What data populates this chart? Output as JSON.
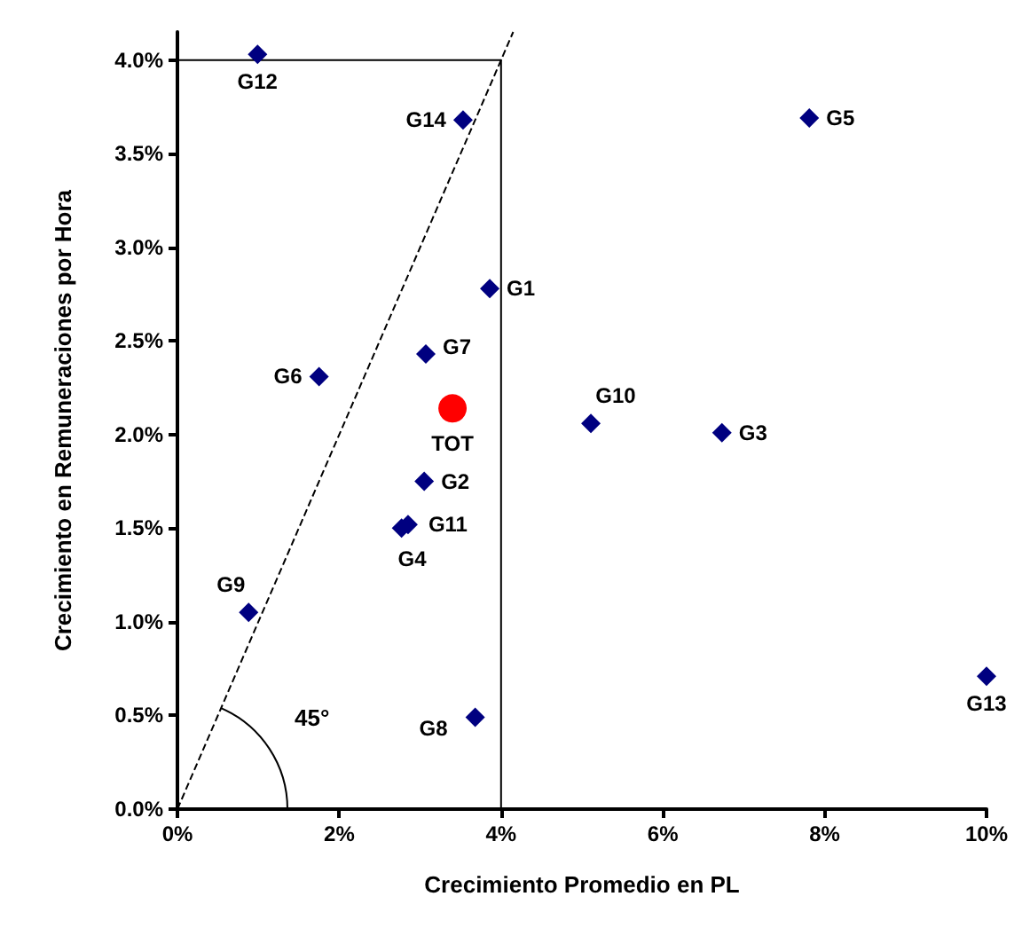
{
  "chart_data": {
    "type": "scatter",
    "xlabel": "Crecimiento Promedio en PL",
    "ylabel": "Crecimiento en Remuneraciones por Hora",
    "xlim": [
      0,
      10
    ],
    "xticks": [
      {
        "value": 0,
        "label": "0%"
      },
      {
        "value": 2,
        "label": "2%"
      },
      {
        "value": 4,
        "label": "4%"
      },
      {
        "value": 6,
        "label": "6%"
      },
      {
        "value": 8,
        "label": "8%"
      },
      {
        "value": 10,
        "label": "10%"
      }
    ],
    "ylim": [
      0,
      4.15
    ],
    "yticks": [
      {
        "value": 0,
        "label": "0.0%"
      },
      {
        "value": 0.5,
        "label": "0.5%"
      },
      {
        "value": 1,
        "label": "1.0%"
      },
      {
        "value": 1.5,
        "label": "1.5%"
      },
      {
        "value": 2,
        "label": "2.0%"
      },
      {
        "value": 2.5,
        "label": "2.5%"
      },
      {
        "value": 3,
        "label": "3.0%"
      },
      {
        "value": 3.5,
        "label": "3.5%"
      },
      {
        "value": 4,
        "label": "4.0%"
      }
    ],
    "grid": false,
    "legend": false,
    "marker": "diamond",
    "series": [
      {
        "name": "G12",
        "color": "#000080",
        "x": [
          0.99
        ],
        "values": [
          4.03
        ]
      },
      {
        "name": "G14",
        "color": "#000080",
        "x": [
          3.53
        ],
        "values": [
          3.68
        ]
      },
      {
        "name": "G5",
        "color": "#000080",
        "x": [
          7.81
        ],
        "values": [
          3.69
        ]
      },
      {
        "name": "G1",
        "color": "#000080",
        "x": [
          3.86
        ],
        "values": [
          2.78
        ]
      },
      {
        "name": "G7",
        "color": "#000080",
        "x": [
          3.07
        ],
        "values": [
          2.43
        ]
      },
      {
        "name": "G6",
        "color": "#000080",
        "x": [
          1.75
        ],
        "values": [
          2.31
        ]
      },
      {
        "name": "TOT",
        "color": "#ff0000",
        "marker": "circle",
        "x": [
          3.4
        ],
        "values": [
          2.14
        ]
      },
      {
        "name": "G10",
        "color": "#000080",
        "x": [
          5.11
        ],
        "values": [
          2.06
        ]
      },
      {
        "name": "G3",
        "color": "#000080",
        "x": [
          6.73
        ],
        "values": [
          2.01
        ]
      },
      {
        "name": "G2",
        "color": "#000080",
        "x": [
          3.05
        ],
        "values": [
          1.75
        ]
      },
      {
        "name": "G11",
        "color": "#000080",
        "x": [
          2.85
        ],
        "values": [
          1.52
        ]
      },
      {
        "name": "G4",
        "color": "#000080",
        "x": [
          2.77
        ],
        "values": [
          1.5
        ]
      },
      {
        "name": "G9",
        "color": "#000080",
        "x": [
          0.88
        ],
        "values": [
          1.05
        ]
      },
      {
        "name": "G8",
        "color": "#000080",
        "x": [
          3.68
        ],
        "values": [
          0.49
        ]
      },
      {
        "name": "G13",
        "color": "#000080",
        "x": [
          10
        ],
        "values": [
          0.71
        ]
      },
      {
        "type": "line",
        "color": "#000000",
        "line_style": "dashed",
        "marker": "none",
        "x": [
          0,
          4.15
        ],
        "values": [
          0,
          4.15
        ]
      },
      {
        "type": "line",
        "color": "#000000",
        "line_style": "solid",
        "marker": "none",
        "x": [
          0,
          4,
          4
        ],
        "values": [
          4,
          4,
          0
        ]
      }
    ],
    "annotations": [
      "45°"
    ]
  }
}
